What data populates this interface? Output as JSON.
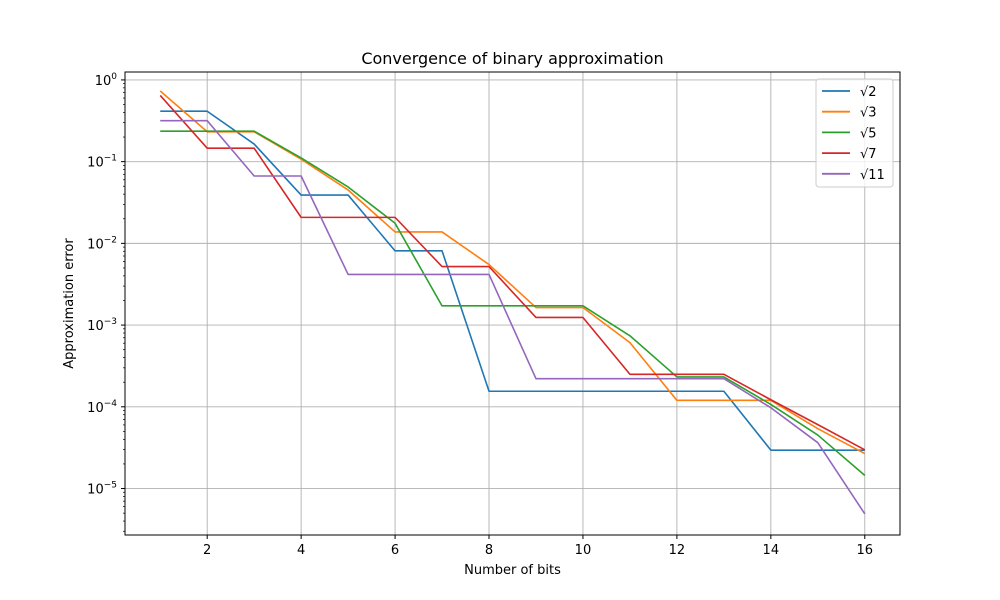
{
  "chart_data": {
    "type": "line",
    "title": "Convergence of binary approximation",
    "xlabel": "Number of bits",
    "ylabel": "Approximation error",
    "yscale": "log",
    "xlim": [
      0.25,
      16.75
    ],
    "ylim": [
      2.7e-06,
      1.25
    ],
    "x": [
      1,
      2,
      3,
      4,
      5,
      6,
      7,
      8,
      9,
      10,
      11,
      12,
      13,
      14,
      15,
      16
    ],
    "xticks": [
      2,
      4,
      6,
      8,
      10,
      12,
      14,
      16
    ],
    "xtick_labels": [
      "2",
      "4",
      "6",
      "8",
      "10",
      "12",
      "14",
      "16"
    ],
    "yticks": [
      {
        "value": 1e-05,
        "mantissa": "10",
        "exponent": "−5"
      },
      {
        "value": 0.0001,
        "mantissa": "10",
        "exponent": "−4"
      },
      {
        "value": 0.001,
        "mantissa": "10",
        "exponent": "−3"
      },
      {
        "value": 0.01,
        "mantissa": "10",
        "exponent": "−2"
      },
      {
        "value": 0.1,
        "mantissa": "10",
        "exponent": "−1"
      },
      {
        "value": 1,
        "mantissa": "10",
        "exponent": "0"
      }
    ],
    "grid": true,
    "legend_position": "top-right",
    "series": [
      {
        "name": "√2",
        "color": "#1f77b4",
        "values": [
          0.414,
          0.414,
          0.164,
          0.039,
          0.039,
          0.0081,
          0.0081,
          0.000155,
          0.000155,
          0.000155,
          0.000155,
          0.000155,
          0.000155,
          2.95e-05,
          2.95e-05,
          2.95e-05
        ]
      },
      {
        "name": "√3",
        "color": "#ff7f0e",
        "values": [
          0.732,
          0.232,
          0.232,
          0.107,
          0.045,
          0.0138,
          0.0138,
          0.0055,
          0.00164,
          0.00164,
          0.00061,
          0.00012,
          0.00012,
          0.00012,
          5.4e-05,
          2.68e-05
        ]
      },
      {
        "name": "√5",
        "color": "#2ca02c",
        "values": [
          0.236,
          0.236,
          0.236,
          0.111,
          0.049,
          0.0176,
          0.00172,
          0.00172,
          0.00172,
          0.00172,
          0.00074,
          0.000232,
          0.000232,
          0.000107,
          4.51e-05,
          1.45e-05
        ]
      },
      {
        "name": "√7",
        "color": "#d62728",
        "values": [
          0.646,
          0.146,
          0.146,
          0.0208,
          0.0208,
          0.0208,
          0.0052,
          0.0052,
          0.00124,
          0.00124,
          0.00025,
          0.00025,
          0.00025,
          0.000122,
          6.05e-05,
          2.98e-05
        ]
      },
      {
        "name": "√11",
        "color": "#9467bd",
        "values": [
          0.317,
          0.317,
          0.0667,
          0.0667,
          0.00417,
          0.00417,
          0.00417,
          0.00417,
          0.000221,
          0.000221,
          0.000221,
          0.000221,
          0.000221,
          9.74e-05,
          3.64e-05,
          4.9e-06
        ]
      }
    ]
  }
}
